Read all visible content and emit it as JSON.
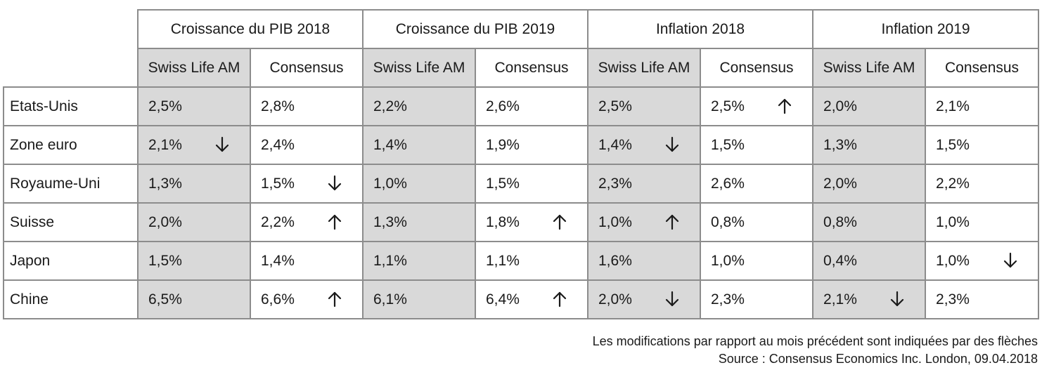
{
  "groups": [
    "Croissance du PIB 2018",
    "Croissance du PIB 2019",
    "Inflation 2018",
    "Inflation 2019"
  ],
  "subheaders": [
    "Swiss Life AM",
    "Consensus"
  ],
  "rows": [
    {
      "label": "Etats-Unis",
      "cells": [
        {
          "v": "2,5%",
          "a": ""
        },
        {
          "v": "2,8%",
          "a": ""
        },
        {
          "v": "2,2%",
          "a": ""
        },
        {
          "v": "2,6%",
          "a": ""
        },
        {
          "v": "2,5%",
          "a": ""
        },
        {
          "v": "2,5%",
          "a": "up"
        },
        {
          "v": "2,0%",
          "a": ""
        },
        {
          "v": "2,1%",
          "a": ""
        }
      ]
    },
    {
      "label": "Zone euro",
      "cells": [
        {
          "v": "2,1%",
          "a": "down"
        },
        {
          "v": "2,4%",
          "a": ""
        },
        {
          "v": "1,4%",
          "a": ""
        },
        {
          "v": "1,9%",
          "a": ""
        },
        {
          "v": "1,4%",
          "a": "down"
        },
        {
          "v": "1,5%",
          "a": ""
        },
        {
          "v": "1,3%",
          "a": ""
        },
        {
          "v": "1,5%",
          "a": ""
        }
      ]
    },
    {
      "label": "Royaume-Uni",
      "cells": [
        {
          "v": "1,3%",
          "a": ""
        },
        {
          "v": "1,5%",
          "a": "down"
        },
        {
          "v": "1,0%",
          "a": ""
        },
        {
          "v": "1,5%",
          "a": ""
        },
        {
          "v": "2,3%",
          "a": ""
        },
        {
          "v": "2,6%",
          "a": ""
        },
        {
          "v": "2,0%",
          "a": ""
        },
        {
          "v": "2,2%",
          "a": ""
        }
      ]
    },
    {
      "label": "Suisse",
      "cells": [
        {
          "v": "2,0%",
          "a": ""
        },
        {
          "v": "2,2%",
          "a": "up"
        },
        {
          "v": "1,3%",
          "a": ""
        },
        {
          "v": "1,8%",
          "a": "up"
        },
        {
          "v": "1,0%",
          "a": "up"
        },
        {
          "v": "0,8%",
          "a": ""
        },
        {
          "v": "0,8%",
          "a": ""
        },
        {
          "v": "1,0%",
          "a": ""
        }
      ]
    },
    {
      "label": "Japon",
      "cells": [
        {
          "v": "1,5%",
          "a": ""
        },
        {
          "v": "1,4%",
          "a": ""
        },
        {
          "v": "1,1%",
          "a": ""
        },
        {
          "v": "1,1%",
          "a": ""
        },
        {
          "v": "1,6%",
          "a": ""
        },
        {
          "v": "1,0%",
          "a": ""
        },
        {
          "v": "0,4%",
          "a": ""
        },
        {
          "v": "1,0%",
          "a": "down"
        }
      ]
    },
    {
      "label": "Chine",
      "cells": [
        {
          "v": "6,5%",
          "a": ""
        },
        {
          "v": "6,6%",
          "a": "up"
        },
        {
          "v": "6,1%",
          "a": ""
        },
        {
          "v": "6,4%",
          "a": "up"
        },
        {
          "v": "2,0%",
          "a": "down"
        },
        {
          "v": "2,3%",
          "a": ""
        },
        {
          "v": "2,1%",
          "a": "down"
        },
        {
          "v": "2,3%",
          "a": ""
        }
      ]
    }
  ],
  "notes": {
    "line1": "Les modifications par rapport au mois précédent sont indiquées par des flèches",
    "line2": "Source : Consensus Economics Inc. London, 09.04.2018"
  },
  "colors": {
    "shaded": "#d9d9d9",
    "border": "#8c8c8c",
    "text": "#1a1a1a"
  }
}
